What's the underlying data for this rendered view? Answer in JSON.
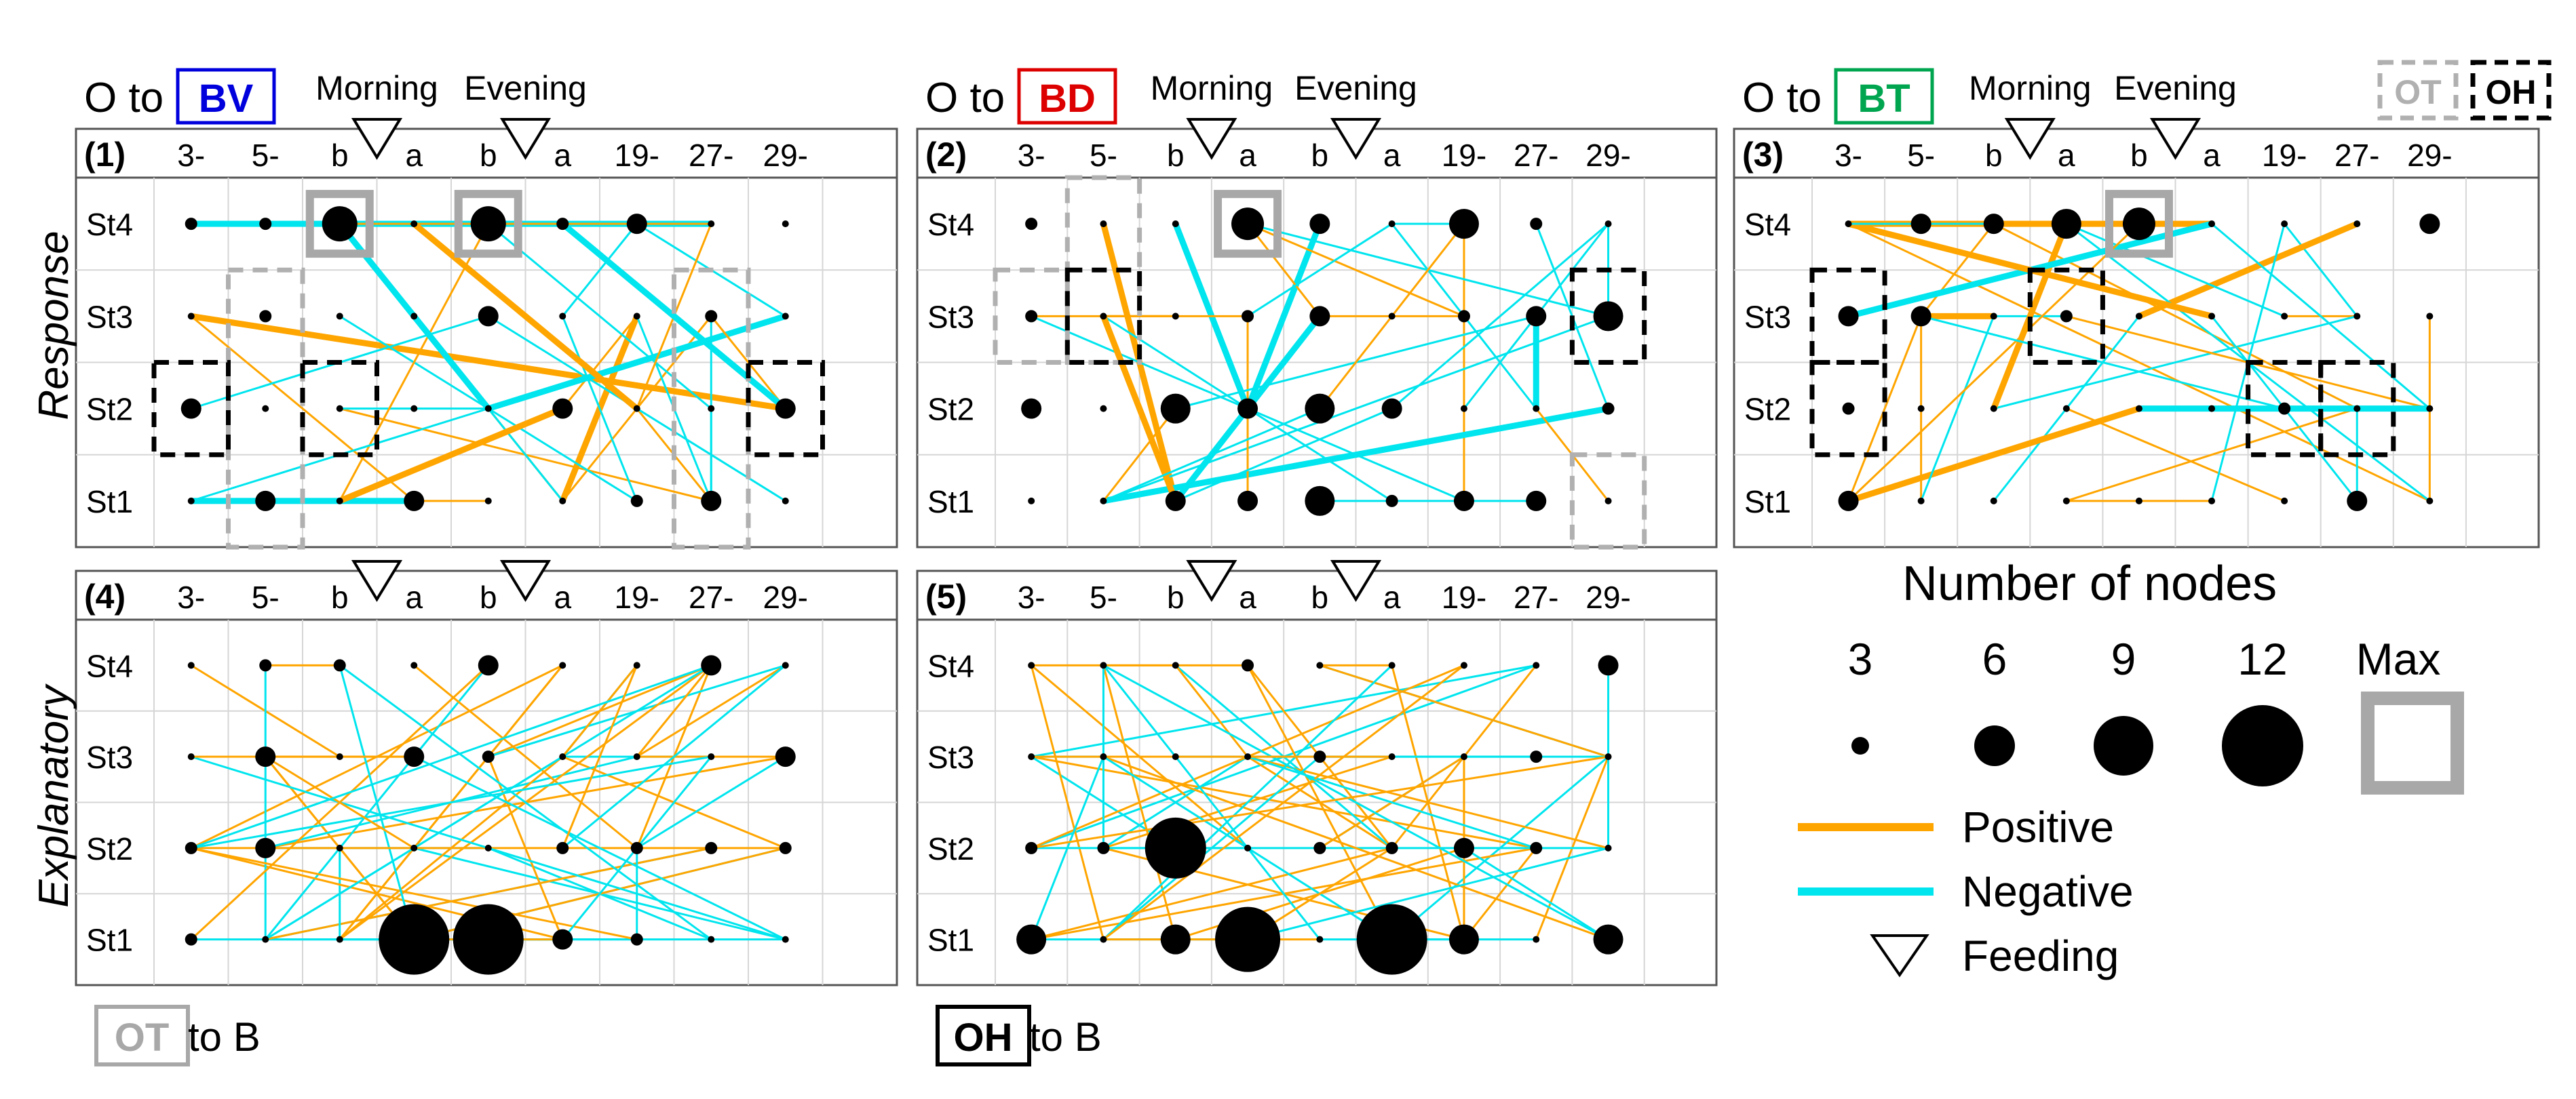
{
  "panels_top": [
    {
      "id": "panel-1",
      "num": "(1)",
      "prefix": "O to ",
      "target": "BV",
      "target_color": "#0000dd",
      "feeding_labels": [
        "Morning",
        "Evening"
      ]
    },
    {
      "id": "panel-2",
      "num": "(2)",
      "prefix": "O to ",
      "target": "BD",
      "target_color": "#dd0000",
      "feeding_labels": [
        "Morning",
        "Evening"
      ]
    },
    {
      "id": "panel-3",
      "num": "(3)",
      "prefix": "O to ",
      "target": "BT",
      "target_color": "#00a550",
      "feeding_labels": [
        "Morning",
        "Evening"
      ]
    }
  ],
  "panels_bottom": [
    {
      "id": "panel-4",
      "num": "(4)",
      "source": "OT",
      "suffix": " to B",
      "box_color": "#a8a8a8"
    },
    {
      "id": "panel-5",
      "num": "(5)",
      "source": "OH",
      "suffix": " to B",
      "box_color": "#000000"
    }
  ],
  "column_labels": [
    "3-",
    "5-",
    "b",
    "a",
    "b",
    "a",
    "19-",
    "27-",
    "29-"
  ],
  "row_labels": [
    "St4",
    "St3",
    "St2",
    "St1"
  ],
  "side_labels": {
    "top": "Response",
    "bottom": "Explanatory"
  },
  "corner_legend": {
    "ot": "OT",
    "oh": "OH"
  },
  "legend": {
    "title": "Number of nodes",
    "sizes": [
      {
        "label": "3",
        "value": 3
      },
      {
        "label": "6",
        "value": 6
      },
      {
        "label": "9",
        "value": 9
      },
      {
        "label": "12",
        "value": 12
      }
    ],
    "max_label": "Max",
    "positive": "Positive",
    "negative": "Negative",
    "feeding": "Feeding"
  },
  "colors": {
    "positive": "#ffa500",
    "negative": "#00e5ee",
    "highlight_max": "#a8a8a8",
    "ot_box": "#b0b0b0",
    "oh_box": "#000000"
  }
}
